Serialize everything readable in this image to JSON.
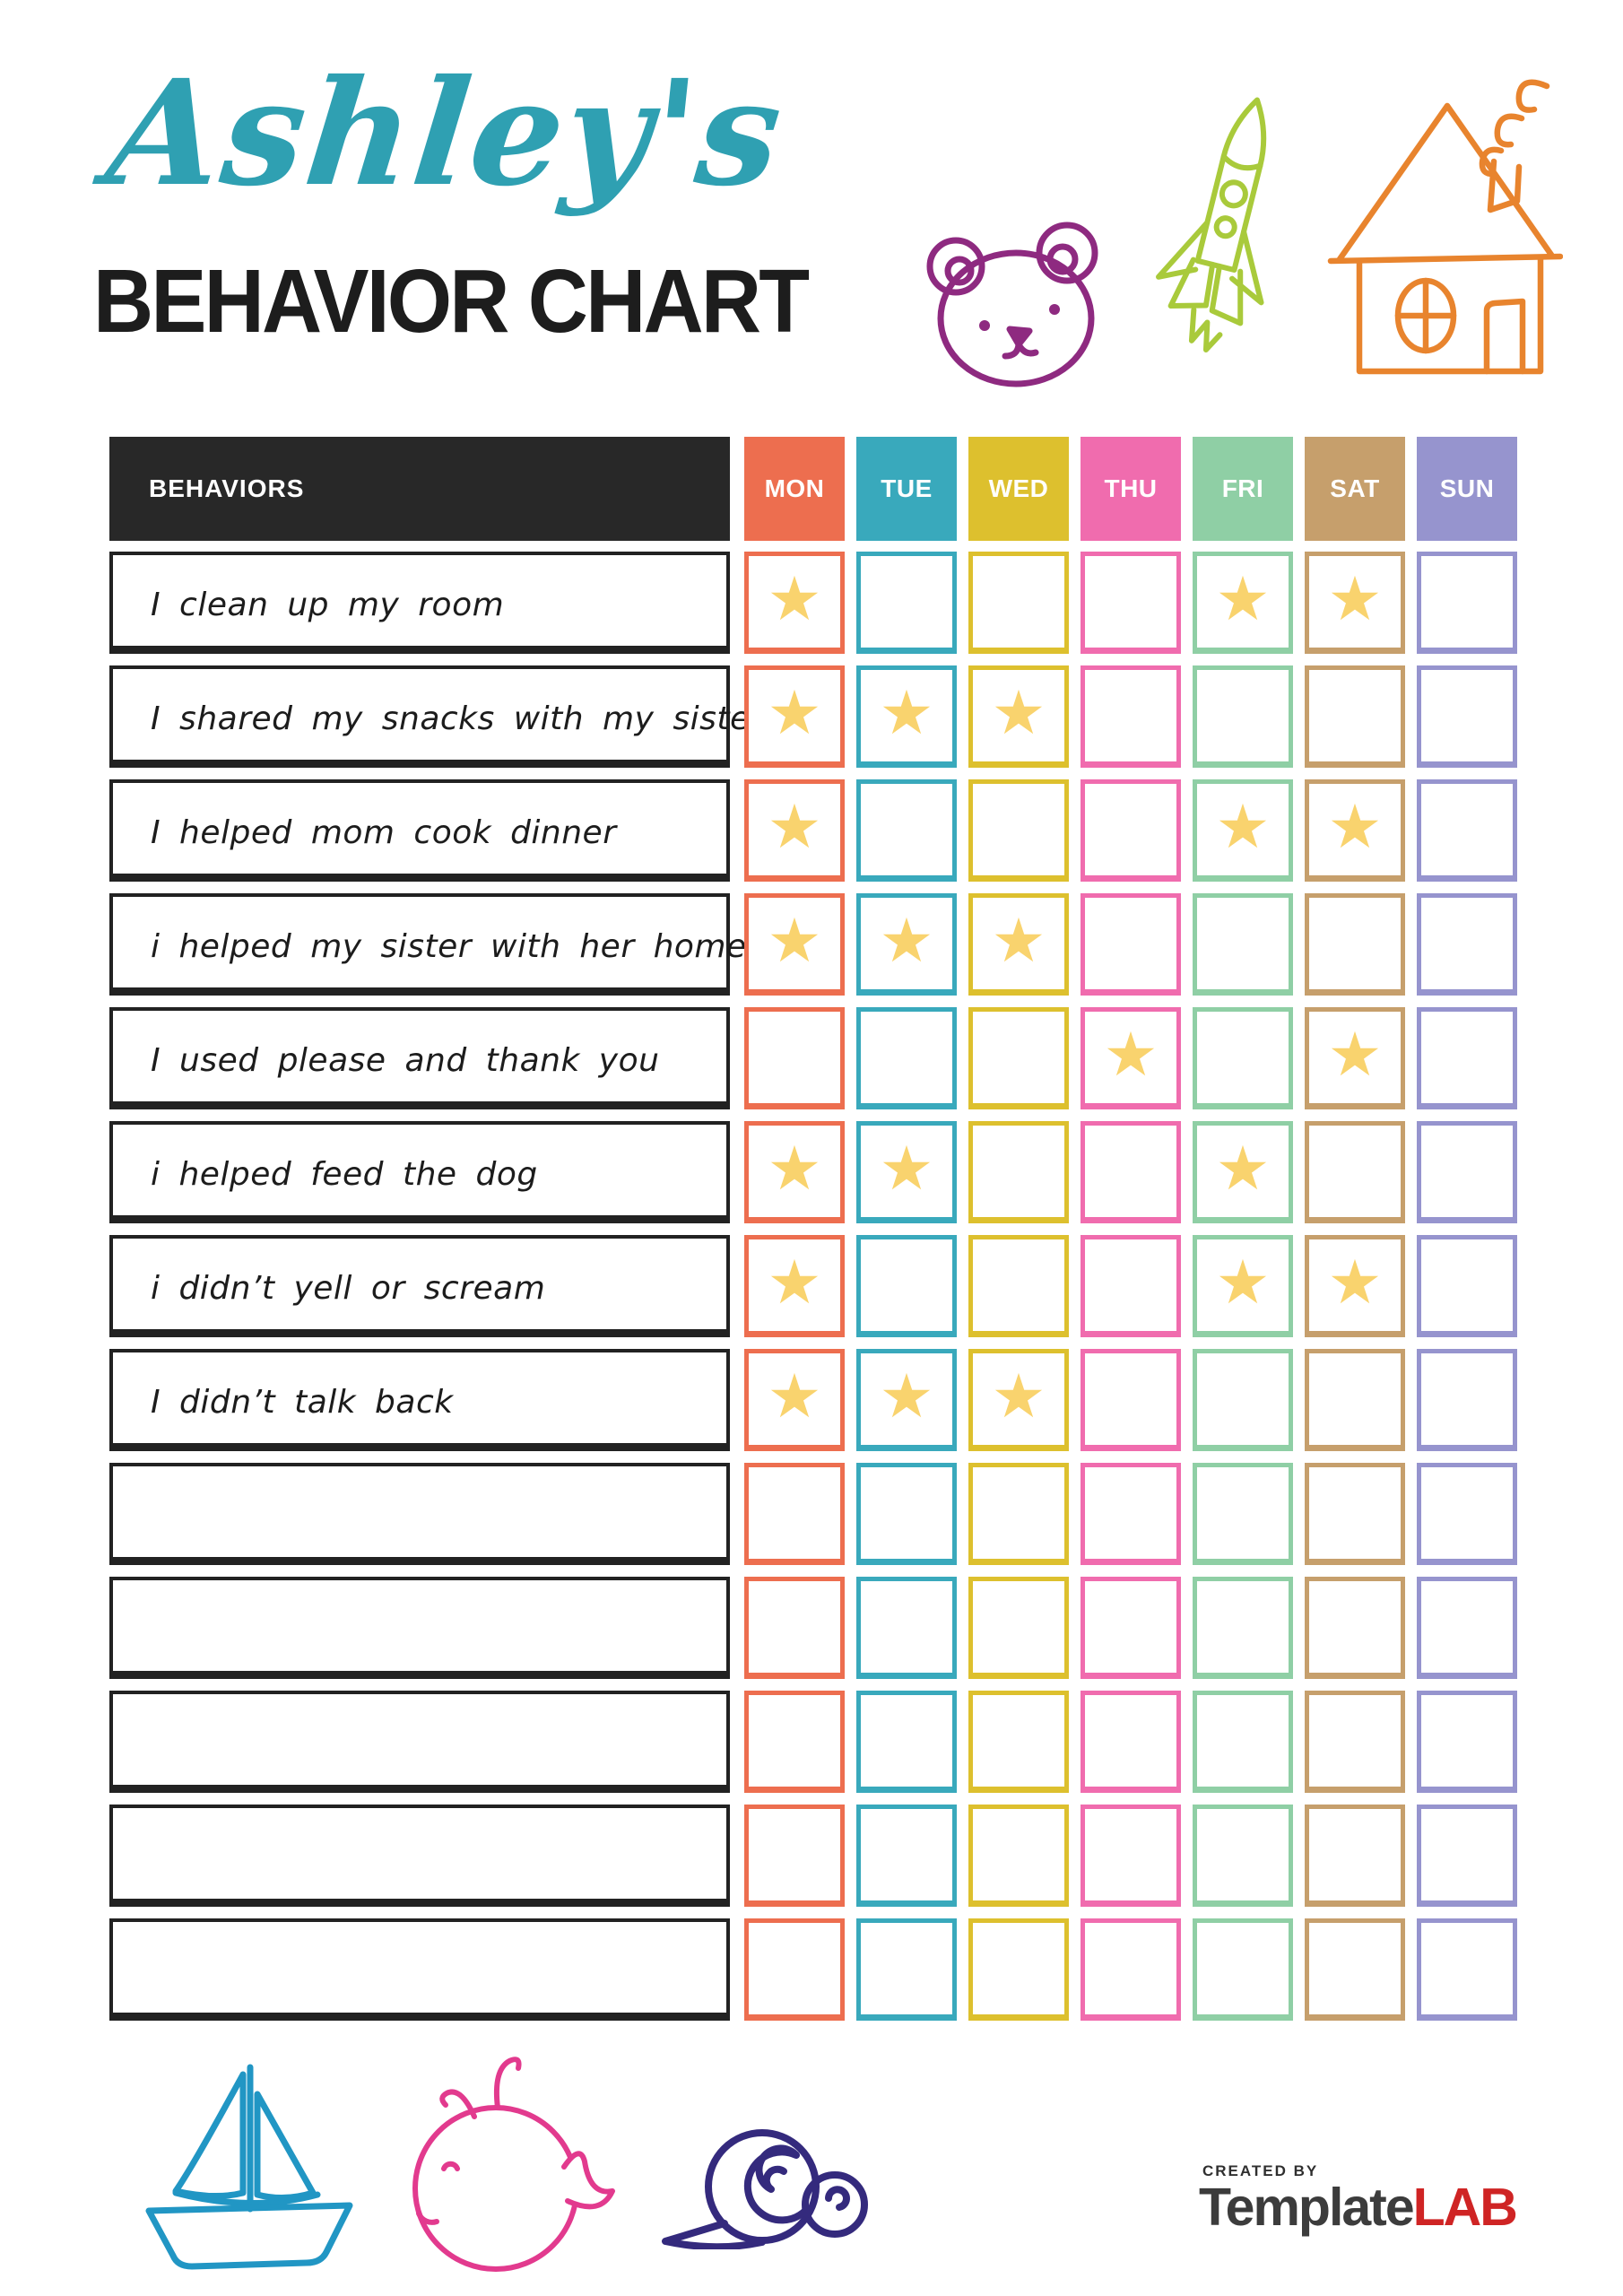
{
  "title": {
    "script_name": "Ashley's",
    "script_color": "#2fa0b2",
    "main": "BEHAVIOR CHART",
    "main_color": "#1d1d1d"
  },
  "table": {
    "behaviors_header": "BEHAVIORS",
    "behaviors_header_bg": "#282828",
    "days": [
      {
        "label": "MON",
        "color": "#ed6e4f"
      },
      {
        "label": "TUE",
        "color": "#39a9bc"
      },
      {
        "label": "WED",
        "color": "#ddc02e"
      },
      {
        "label": "THU",
        "color": "#f06cae"
      },
      {
        "label": "FRI",
        "color": "#8fcfa5"
      },
      {
        "label": "SAT",
        "color": "#c69f6c"
      },
      {
        "label": "SUN",
        "color": "#9694ce"
      }
    ],
    "star": {
      "glyph": "★",
      "color": "#f9d36e"
    },
    "rows": [
      {
        "label": "I clean up my room",
        "stars": [
          1,
          0,
          0,
          0,
          1,
          1,
          0
        ]
      },
      {
        "label": "I shared my snacks with my sister",
        "stars": [
          1,
          1,
          1,
          0,
          0,
          0,
          0
        ]
      },
      {
        "label": "I helped mom cook dinner",
        "stars": [
          1,
          0,
          0,
          0,
          1,
          1,
          0
        ]
      },
      {
        "label": "i helped my sister with her homework",
        "stars": [
          1,
          1,
          1,
          0,
          0,
          0,
          0
        ]
      },
      {
        "label": "I used please and thank you",
        "stars": [
          0,
          0,
          0,
          1,
          0,
          1,
          0
        ]
      },
      {
        "label": "i helped feed the dog",
        "stars": [
          1,
          1,
          0,
          0,
          1,
          0,
          0
        ]
      },
      {
        "label": "i didn’t yell or scream",
        "stars": [
          1,
          0,
          0,
          0,
          1,
          1,
          0
        ]
      },
      {
        "label": "I didn’t talk back",
        "stars": [
          1,
          1,
          1,
          0,
          0,
          0,
          0
        ]
      },
      {
        "label": "",
        "stars": [
          0,
          0,
          0,
          0,
          0,
          0,
          0
        ]
      },
      {
        "label": "",
        "stars": [
          0,
          0,
          0,
          0,
          0,
          0,
          0
        ]
      },
      {
        "label": "",
        "stars": [
          0,
          0,
          0,
          0,
          0,
          0,
          0
        ]
      },
      {
        "label": "",
        "stars": [
          0,
          0,
          0,
          0,
          0,
          0,
          0
        ]
      },
      {
        "label": "",
        "stars": [
          0,
          0,
          0,
          0,
          0,
          0,
          0
        ]
      }
    ]
  },
  "decorations": {
    "bear-doodle-icon": "#8e2a80",
    "rocket-doodle-icon": "#a9ca3b",
    "house-doodle-icon": "#e8842e",
    "sailboat-doodle-icon": "#2196c4",
    "whale-doodle-icon": "#e23a8e",
    "snail-doodle-icon": "#342a7d"
  },
  "footer": {
    "created_by": "CREATED BY",
    "created_by_color": "#2f2f2f",
    "brand": "Template",
    "brand_color": "#3c3c3c",
    "brand_accent": "LAB",
    "accent_color": "#cf2424"
  }
}
